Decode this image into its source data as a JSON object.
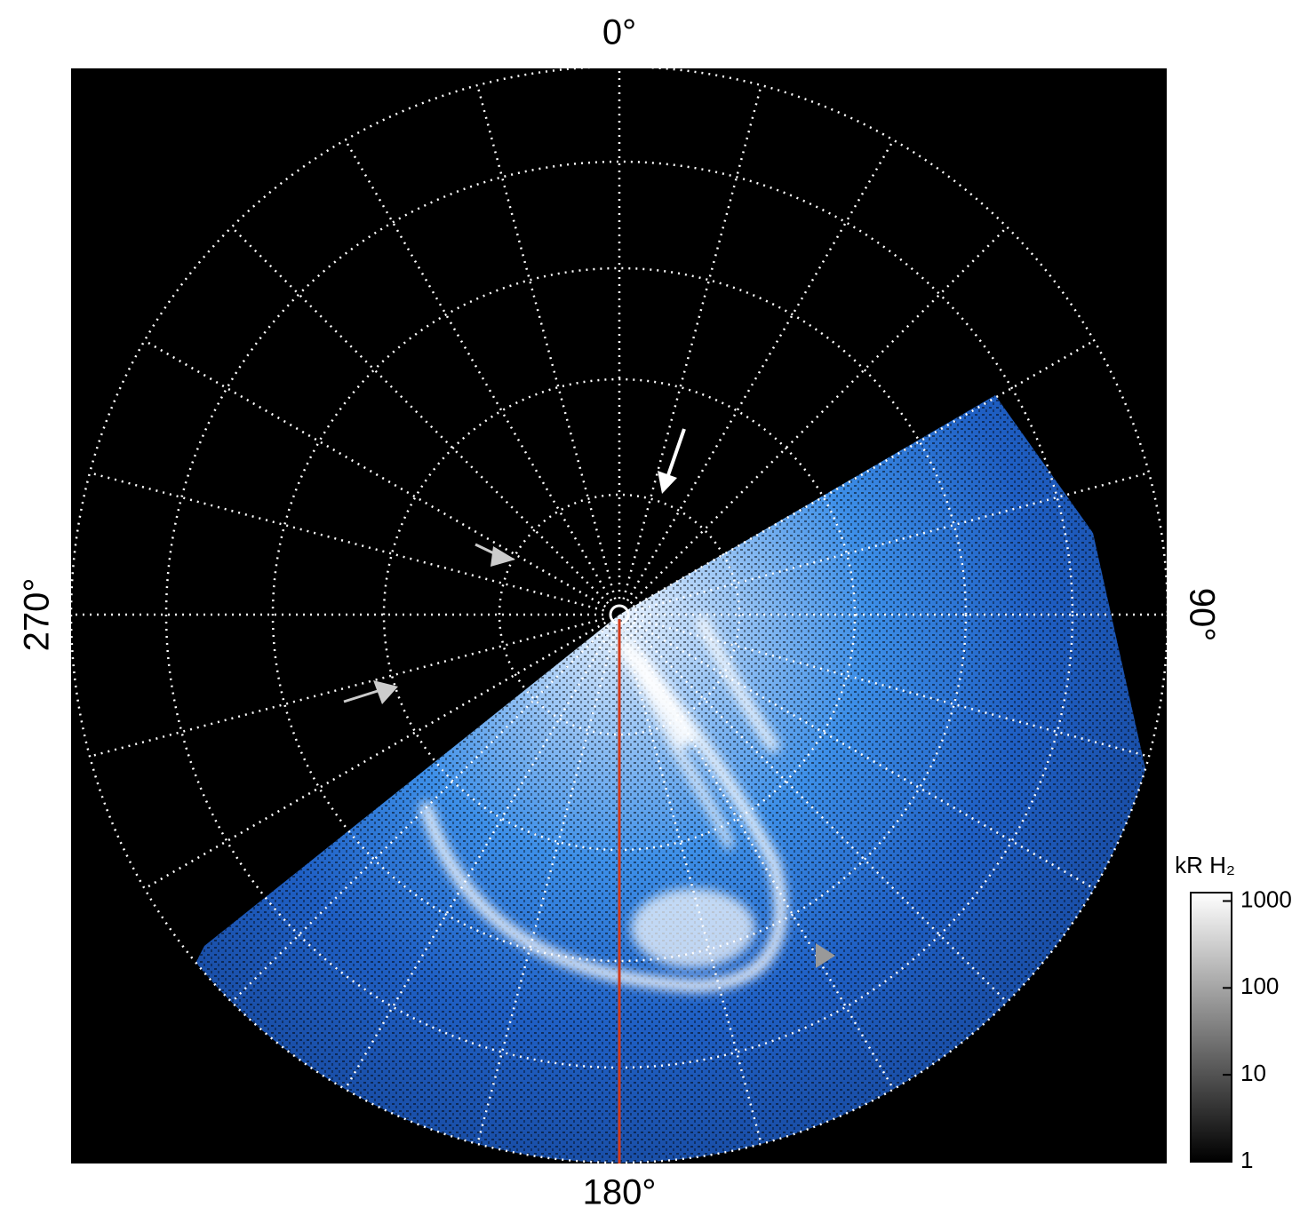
{
  "chart_data": {
    "type": "polar-image",
    "thetaticks": [
      {
        "value": 0,
        "label": "0°"
      },
      {
        "value": 90,
        "label": "90°"
      },
      {
        "value": 180,
        "label": "180°"
      },
      {
        "value": 270,
        "label": "270°"
      }
    ],
    "colorbar": {
      "label": "kR H₂",
      "scale": "log",
      "lim": [
        1,
        1250
      ],
      "ticks": [
        1,
        10,
        100,
        1000
      ]
    }
  }
}
